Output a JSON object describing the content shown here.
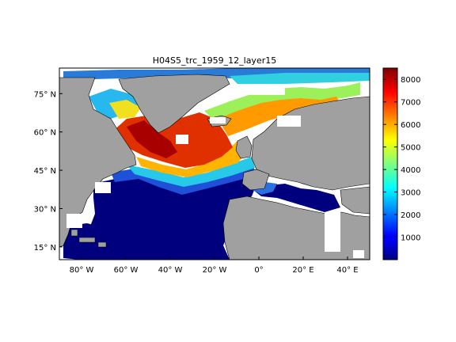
{
  "title": "H04S5_trc_1959_12_layer15",
  "map": {
    "lon_range": [
      -90,
      50
    ],
    "lat_range": [
      10,
      85
    ],
    "lon_ticks": [
      -80,
      -60,
      -40,
      -20,
      0,
      20,
      40
    ],
    "lat_ticks": [
      15,
      30,
      45,
      60,
      75
    ],
    "lon_tick_labels": [
      "80° W",
      "60° W",
      "40° W",
      "20° W",
      "0°",
      "20° E",
      "40° E"
    ],
    "lat_tick_labels": [
      "15° N",
      "30° N",
      "45° N",
      "60° N",
      "75° N"
    ],
    "colors": {
      "land": "#a0a0a0",
      "no_data": "#ffffff",
      "ocean_low": "#00007f"
    }
  },
  "colorbar": {
    "colormap": "jet",
    "range": [
      0,
      8500
    ],
    "ticks": [
      1000,
      2000,
      3000,
      4000,
      5000,
      6000,
      7000,
      8000
    ],
    "tick_labels": [
      "1000",
      "2000",
      "3000",
      "4000",
      "5000",
      "6000",
      "7000",
      "8000"
    ]
  }
}
